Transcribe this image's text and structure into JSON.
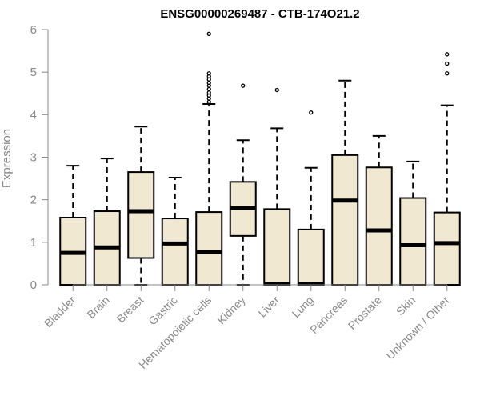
{
  "chart_data": {
    "type": "box",
    "title": "ENSG00000269487 - CTB-174O21.2",
    "ylabel": "Expression",
    "xlabel": "",
    "ylim": [
      0,
      6
    ],
    "yticks": [
      "0",
      "1",
      "2",
      "3",
      "4",
      "5",
      "6"
    ],
    "colors": {
      "box_fill": "#f0e8d0",
      "stroke": "#000000",
      "axis": "#888888"
    },
    "categories": [
      "Bladder",
      "Brain",
      "Breast",
      "Gastric",
      "Hematopoietic cells",
      "Kidney",
      "Liver",
      "Lung",
      "Pancreas",
      "Prostate",
      "Skin",
      "Unknown / Other"
    ],
    "boxes": [
      {
        "min": 0,
        "q1": 0,
        "median": 0.75,
        "q3": 1.58,
        "max": 2.8,
        "outliers": []
      },
      {
        "min": 0,
        "q1": 0,
        "median": 0.88,
        "q3": 1.73,
        "max": 2.97,
        "outliers": []
      },
      {
        "min": 0,
        "q1": 0.63,
        "median": 1.73,
        "q3": 2.65,
        "max": 3.72,
        "outliers": []
      },
      {
        "min": 0,
        "q1": 0,
        "median": 0.97,
        "q3": 1.56,
        "max": 2.52,
        "outliers": []
      },
      {
        "min": 0,
        "q1": 0,
        "median": 0.77,
        "q3": 1.71,
        "max": 4.25,
        "outliers": [
          4.3,
          4.38,
          4.45,
          4.52,
          4.6,
          4.68,
          4.75,
          4.83,
          4.9,
          4.97,
          5.9
        ]
      },
      {
        "min": 0,
        "q1": 1.15,
        "median": 1.8,
        "q3": 2.42,
        "max": 3.4,
        "outliers": [
          4.68
        ]
      },
      {
        "min": 0,
        "q1": 0,
        "median": 0.02,
        "q3": 1.78,
        "max": 3.68,
        "outliers": [
          4.58
        ]
      },
      {
        "min": 0,
        "q1": 0,
        "median": 0.02,
        "q3": 1.3,
        "max": 2.75,
        "outliers": [
          4.05
        ]
      },
      {
        "min": 0,
        "q1": 0,
        "median": 1.98,
        "q3": 3.05,
        "max": 4.8,
        "outliers": []
      },
      {
        "min": 0,
        "q1": 0,
        "median": 1.28,
        "q3": 2.76,
        "max": 3.5,
        "outliers": []
      },
      {
        "min": 0,
        "q1": 0,
        "median": 0.93,
        "q3": 2.04,
        "max": 2.9,
        "outliers": []
      },
      {
        "min": 0,
        "q1": 0,
        "median": 0.98,
        "q3": 1.7,
        "max": 4.22,
        "outliers": [
          4.97,
          5.2,
          5.42
        ]
      }
    ]
  }
}
